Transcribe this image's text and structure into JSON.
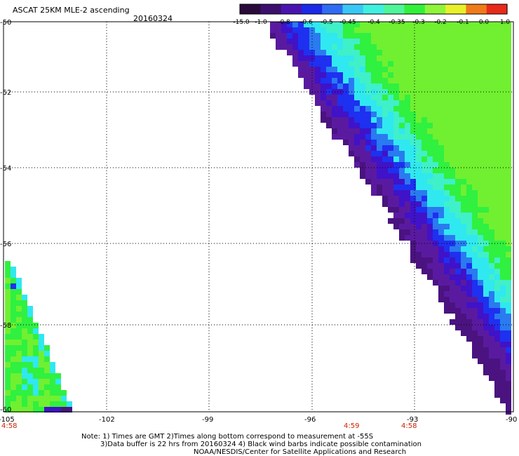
{
  "header": {
    "title": "ASCAT 25KM MLE-2 ascending",
    "date": "20160324"
  },
  "colorbar": {
    "labels": [
      "-15.0",
      "-1.0",
      "-0.8",
      "-0.6",
      "-0.5",
      "-0.45",
      "-0.4",
      "-0.35",
      "-0.3",
      "-0.2",
      "-0.1",
      "0.0",
      "1.0"
    ],
    "colors": [
      "#2a0a3a",
      "#3c0f6e",
      "#4a13b0",
      "#1a2ae8",
      "#2f6cf2",
      "#39c7f5",
      "#3ff0e0",
      "#4ff59a",
      "#32f03a",
      "#8ef53a",
      "#e8f02a",
      "#f07a1a",
      "#e82a1a"
    ]
  },
  "axes": {
    "lat_labels": [
      "-50",
      "-52",
      "-54",
      "-56",
      "-58",
      "-60"
    ],
    "lon_labels": [
      "-105",
      "-102",
      "-99",
      "-96",
      "-93",
      "-90"
    ],
    "time_labels": [
      "4:58",
      "4:59",
      "4:58"
    ]
  },
  "notes": {
    "line1": "Note: 1) Times are GMT 2)Times along bottom correspond to measurement at -55S",
    "line2": "3)Data buffer is 22 hrs from 20160324 4) Black wind barbs indicate possible contamination",
    "line3": "NOAA/NESDIS/Center for Satellite Applications and Research"
  },
  "map": {
    "type": "swath-map",
    "swath_colors": {
      "deep": "#4a1380",
      "purple": "#5a1aa0",
      "violet": "#4012c8",
      "blue": "#1e30f0",
      "midblue": "#2a7af0",
      "cyan": "#30e8f0",
      "aqua": "#40f0c8",
      "green": "#30f040",
      "lime": "#70f030"
    }
  }
}
